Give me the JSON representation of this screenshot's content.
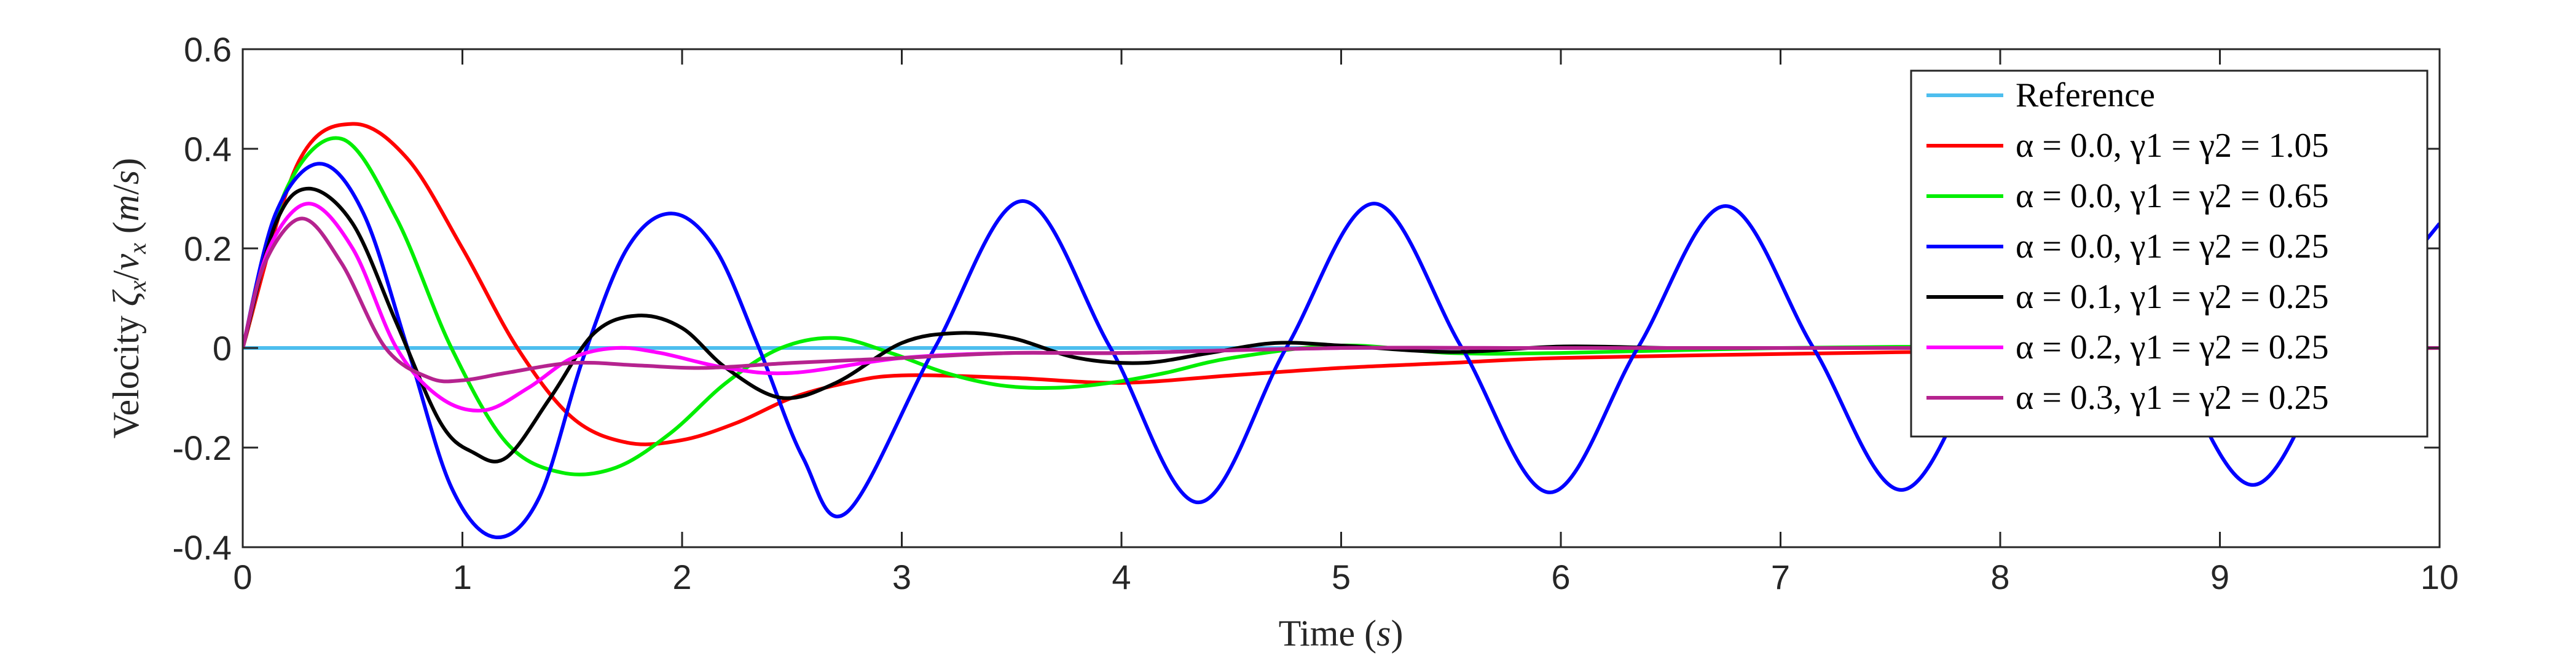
{
  "chart_data": {
    "type": "line",
    "title": "",
    "xlabel": "Time (s)",
    "ylabel": "Velocity ζx/vx (m/s)",
    "xlim": [
      0,
      10
    ],
    "ylim": [
      -0.4,
      0.6
    ],
    "xticks": [
      0,
      1,
      2,
      3,
      4,
      5,
      6,
      7,
      8,
      9,
      10
    ],
    "yticks": [
      -0.4,
      -0.2,
      0,
      0.2,
      0.4,
      0.6
    ],
    "xtick_labels": [
      "0",
      "1",
      "2",
      "3",
      "4",
      "5",
      "6",
      "7",
      "8",
      "9",
      "10"
    ],
    "ytick_labels": [
      "-0.4",
      "-0.2",
      "0",
      "0.2",
      "0.4",
      "0.6"
    ],
    "grid": false,
    "legend_position": "top-right",
    "series": [
      {
        "name": "Reference",
        "color": "#4dbeee",
        "x": [
          0,
          10
        ],
        "y": [
          0,
          0
        ]
      },
      {
        "name": "α = 0.0, γ1 = γ2 = 1.05",
        "color": "#ff0000",
        "x": [
          0,
          0.25,
          0.5,
          0.75,
          1.0,
          1.25,
          1.5,
          1.75,
          2.0,
          2.25,
          2.5,
          2.75,
          3.0,
          3.5,
          4.0,
          4.5,
          5.0,
          5.5,
          6.0,
          7.0,
          8.0,
          9.0,
          10.0
        ],
        "y": [
          0,
          0.37,
          0.45,
          0.38,
          0.2,
          0.0,
          -0.14,
          -0.19,
          -0.185,
          -0.15,
          -0.1,
          -0.07,
          -0.055,
          -0.06,
          -0.07,
          -0.055,
          -0.04,
          -0.03,
          -0.02,
          -0.012,
          -0.006,
          -0.003,
          0
        ]
      },
      {
        "name": "α = 0.0, γ1 = γ2 = 0.65",
        "color": "#00ee00",
        "x": [
          0,
          0.2,
          0.45,
          0.7,
          0.95,
          1.2,
          1.45,
          1.7,
          1.95,
          2.2,
          2.45,
          2.7,
          2.95,
          3.2,
          3.45,
          3.7,
          3.95,
          4.2,
          4.5,
          5.0,
          5.5,
          6.0,
          7.0,
          8.0,
          9.0,
          10.0
        ],
        "y": [
          0,
          0.32,
          0.42,
          0.26,
          0.0,
          -0.19,
          -0.25,
          -0.24,
          -0.17,
          -0.07,
          0.0,
          0.02,
          -0.01,
          -0.05,
          -0.075,
          -0.08,
          -0.07,
          -0.05,
          -0.02,
          0.005,
          -0.01,
          -0.01,
          0,
          0.003,
          0,
          0
        ]
      },
      {
        "name": "α = 0.0, γ1 = γ2 = 0.25",
        "color": "#0000ff",
        "x": [
          0,
          0.15,
          0.35,
          0.55,
          0.75,
          0.95,
          1.15,
          1.35,
          1.55,
          1.75,
          1.95,
          2.15,
          2.35,
          2.55,
          2.75,
          3.15,
          3.55,
          3.95,
          4.35,
          4.75,
          5.15,
          5.55,
          5.95,
          6.35,
          6.75,
          7.15,
          7.55,
          7.95,
          8.35,
          8.75,
          9.15,
          9.55,
          10.0
        ],
        "y": [
          0,
          0.27,
          0.37,
          0.27,
          0.0,
          -0.28,
          -0.38,
          -0.3,
          -0.02,
          0.2,
          0.27,
          0.2,
          0.0,
          -0.22,
          -0.33,
          0.0,
          0.295,
          0.0,
          -0.31,
          0.0,
          0.29,
          0.0,
          -0.29,
          0.0,
          0.285,
          0.0,
          -0.285,
          0.0,
          0.28,
          0.0,
          -0.275,
          0.0,
          0.25
        ]
      },
      {
        "name": "α = 0.1, γ1 = γ2 = 0.25",
        "color": "#000000",
        "x": [
          0,
          0.15,
          0.3,
          0.5,
          0.7,
          0.9,
          1.05,
          1.2,
          1.4,
          1.6,
          1.8,
          2.0,
          2.2,
          2.45,
          2.7,
          3.0,
          3.25,
          3.5,
          3.8,
          4.1,
          4.4,
          4.7,
          5.0,
          5.5,
          6.0,
          6.5,
          7.0,
          8.0,
          9.0,
          10.0
        ],
        "y": [
          0,
          0.25,
          0.32,
          0.25,
          0.05,
          -0.15,
          -0.21,
          -0.22,
          -0.1,
          0.03,
          0.065,
          0.04,
          -0.04,
          -0.1,
          -0.07,
          0.01,
          0.03,
          0.02,
          -0.02,
          -0.03,
          -0.01,
          0.01,
          0.005,
          -0.008,
          0.003,
          0,
          0,
          0,
          0,
          0
        ]
      },
      {
        "name": "α = 0.2, γ1 = γ2 = 0.25",
        "color": "#ff00ff",
        "x": [
          0,
          0.12,
          0.3,
          0.5,
          0.7,
          0.9,
          1.1,
          1.3,
          1.5,
          1.7,
          1.9,
          2.2,
          2.5,
          3.0,
          3.5,
          4.0,
          5.0,
          6.0,
          10.0
        ],
        "y": [
          0,
          0.2,
          0.29,
          0.2,
          0.0,
          -0.1,
          -0.125,
          -0.08,
          -0.02,
          0.0,
          -0.01,
          -0.04,
          -0.05,
          -0.02,
          -0.01,
          -0.01,
          0,
          0,
          0
        ]
      },
      {
        "name": "α = 0.3, γ1 = γ2 = 0.25",
        "color": "#b5238f",
        "x": [
          0,
          0.1,
          0.27,
          0.45,
          0.65,
          0.85,
          1.0,
          1.2,
          1.5,
          1.8,
          2.1,
          2.5,
          3.0,
          3.5,
          4.0,
          5.0,
          6.0,
          10.0
        ],
        "y": [
          0,
          0.17,
          0.26,
          0.17,
          0.0,
          -0.06,
          -0.065,
          -0.05,
          -0.03,
          -0.035,
          -0.04,
          -0.03,
          -0.02,
          -0.01,
          -0.01,
          0,
          0,
          0
        ]
      }
    ]
  }
}
